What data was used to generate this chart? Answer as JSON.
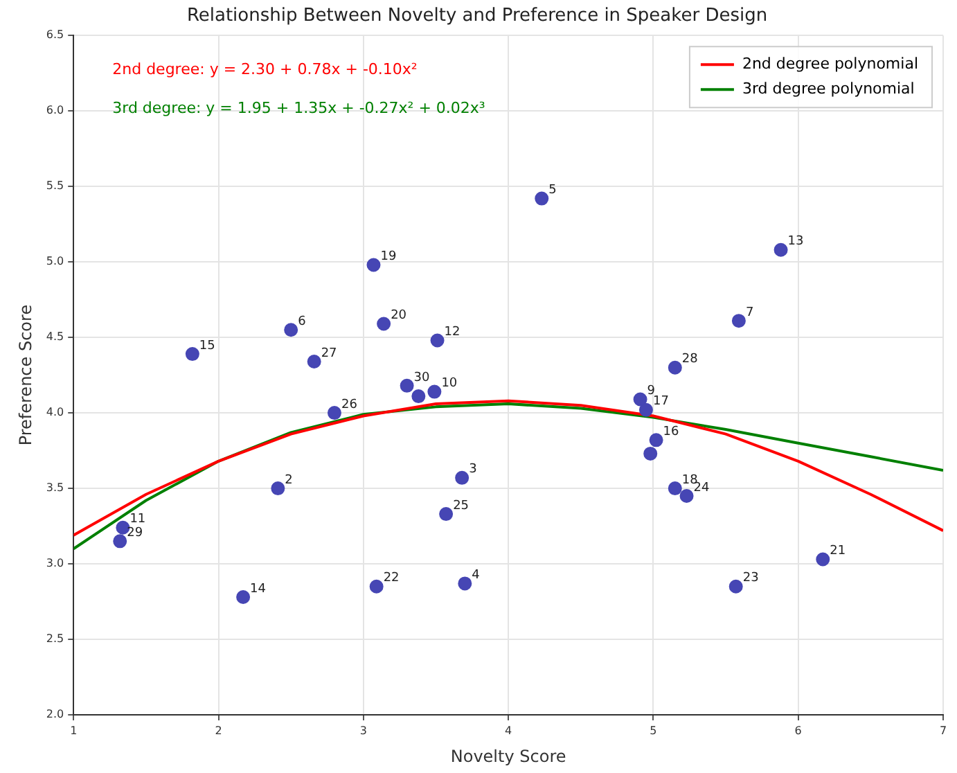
{
  "chart_data": {
    "type": "scatter",
    "title": "Relationship Between Novelty and Preference in Speaker Design",
    "xlabel": "Novelty Score",
    "ylabel": "Preference Score",
    "xlim": [
      1,
      7
    ],
    "xticks": [
      1,
      2,
      3,
      4,
      5,
      6,
      7
    ],
    "ylim": [
      2,
      6.5
    ],
    "yticks": [
      {
        "value": 2,
        "label": "2.0"
      },
      {
        "value": 2.5,
        "label": "2.5"
      },
      {
        "value": 3,
        "label": "3.0"
      },
      {
        "value": 3.5,
        "label": "3.5"
      },
      {
        "value": 4,
        "label": "4.0"
      },
      {
        "value": 4.5,
        "label": "4.5"
      },
      {
        "value": 5,
        "label": "5.0"
      },
      {
        "value": 5.5,
        "label": "5.5"
      },
      {
        "value": 6,
        "label": "6.0"
      },
      {
        "value": 6.5,
        "label": "6.5"
      }
    ],
    "grid": true,
    "legend": "top right",
    "series": [
      {
        "type": "scatter",
        "marker": "circle",
        "color": "#4646b4",
        "x": [
          4.23,
          5.88,
          5.59,
          5.15,
          4.91,
          4.95,
          5.02,
          4.98,
          5.15,
          5.23,
          6.17,
          5.57,
          3.68,
          3.57,
          3.7,
          3.51,
          3.3,
          3.38,
          3.49,
          3.07,
          3.14,
          2.5,
          2.66,
          1.82,
          2.8,
          2.41,
          1.34,
          1.32,
          2.17,
          3.09
        ],
        "values": [
          5.42,
          5.08,
          4.61,
          4.3,
          4.09,
          4.02,
          3.82,
          3.73,
          3.5,
          3.45,
          3.03,
          2.85,
          3.57,
          3.33,
          2.87,
          4.48,
          4.18,
          4.11,
          4.14,
          4.98,
          4.59,
          4.55,
          4.34,
          4.39,
          4.0,
          3.5,
          3.24,
          3.15,
          2.78,
          2.85
        ]
      },
      {
        "type": "line",
        "marker": "none",
        "name": "2nd degree polynomial",
        "color": "#ff0000",
        "x": [
          1,
          1.5,
          2,
          2.5,
          3,
          3.5,
          4,
          4.5,
          5,
          5.5,
          6,
          6.5,
          7
        ],
        "values": [
          3.19,
          3.46,
          3.68,
          3.86,
          3.98,
          4.06,
          4.08,
          4.05,
          3.98,
          3.86,
          3.68,
          3.46,
          3.22
        ]
      },
      {
        "type": "line",
        "marker": "none",
        "name": "3rd degree polynomial",
        "color": "#008000",
        "x": [
          1,
          1.5,
          2,
          2.5,
          3,
          3.5,
          4,
          4.5,
          5,
          5.5,
          6,
          6.5,
          7
        ],
        "values": [
          3.1,
          3.42,
          3.68,
          3.87,
          3.99,
          4.04,
          4.06,
          4.03,
          3.97,
          3.89,
          3.8,
          3.71,
          3.62
        ]
      }
    ],
    "annotations": [
      "2nd degree: y = 2.30 + 0.78x + -0.10x²",
      "3rd degree: y = 1.95 + 1.35x + -0.27x² + 0.02x³",
      {
        "text": "5",
        "x": 4.23,
        "y": 5.42
      },
      {
        "text": "13",
        "x": 5.88,
        "y": 5.08
      },
      {
        "text": "7",
        "x": 5.59,
        "y": 4.61
      },
      {
        "text": "28",
        "x": 5.15,
        "y": 4.3
      },
      {
        "text": "9",
        "x": 4.91,
        "y": 4.09
      },
      {
        "text": "17",
        "x": 4.95,
        "y": 4.02
      },
      {
        "text": "16",
        "x": 5.02,
        "y": 3.82
      },
      {
        "text": "18",
        "x": 5.15,
        "y": 3.5
      },
      {
        "text": "24",
        "x": 5.23,
        "y": 3.45
      },
      {
        "text": "21",
        "x": 6.17,
        "y": 3.03
      },
      {
        "text": "23",
        "x": 5.57,
        "y": 2.85
      },
      {
        "text": "3",
        "x": 3.68,
        "y": 3.57
      },
      {
        "text": "25",
        "x": 3.57,
        "y": 3.33
      },
      {
        "text": "4",
        "x": 3.7,
        "y": 2.87
      },
      {
        "text": "12",
        "x": 3.51,
        "y": 4.48
      },
      {
        "text": "30",
        "x": 3.3,
        "y": 4.18
      },
      {
        "text": "10",
        "x": 3.49,
        "y": 4.14
      },
      {
        "text": "19",
        "x": 3.07,
        "y": 4.98
      },
      {
        "text": "20",
        "x": 3.14,
        "y": 4.59
      },
      {
        "text": "6",
        "x": 2.5,
        "y": 4.55
      },
      {
        "text": "27",
        "x": 2.66,
        "y": 4.34
      },
      {
        "text": "15",
        "x": 1.82,
        "y": 4.39
      },
      {
        "text": "26",
        "x": 2.8,
        "y": 4.0
      },
      {
        "text": "2",
        "x": 2.41,
        "y": 3.5
      },
      {
        "text": "11",
        "x": 1.34,
        "y": 3.24
      },
      {
        "text": "29",
        "x": 1.32,
        "y": 3.15
      },
      {
        "text": "14",
        "x": 2.17,
        "y": 2.78
      },
      {
        "text": "22",
        "x": 3.09,
        "y": 2.85
      }
    ]
  }
}
